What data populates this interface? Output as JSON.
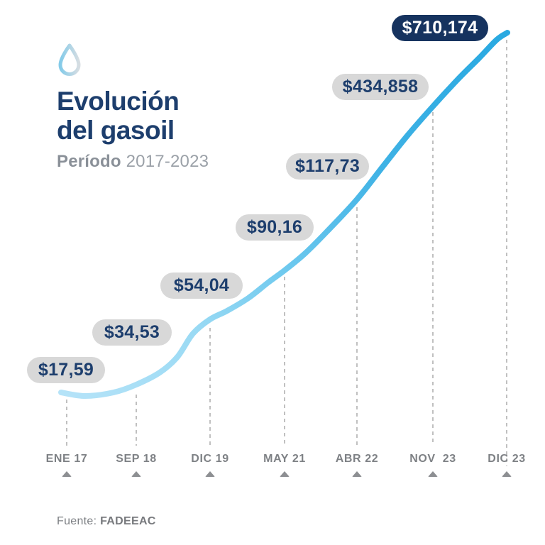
{
  "header": {
    "title_line1": "Evolución",
    "title_line2": "del gasoil",
    "period_label": "Período",
    "period_value": "2017-2023"
  },
  "chart_data": {
    "type": "line",
    "title": "Evolución del gasoil",
    "subtitle": "Período 2017-2023",
    "x": [
      "ENE 17",
      "SEP 18",
      "DIC 19",
      "MAY 21",
      "ABR 22",
      "NOV  23",
      "DIC 23"
    ],
    "values": [
      17.59,
      34.53,
      54.04,
      90.16,
      117.73,
      434.858,
      710.174
    ],
    "value_labels": [
      "$17,59",
      "$34,53",
      "$54,04",
      "$90,16",
      "$117,73",
      "$434,858",
      "$710,174"
    ],
    "highlight_index": 6,
    "currency_symbol": "$",
    "legend": "none",
    "grid": "vertical-dashed",
    "line_gradient_start": "#b5e3f8",
    "line_gradient_end": "#29a9e1",
    "pill_bg": "#d8d8d8",
    "pill_text_color": "#1d3e6d",
    "highlight_pill_bg": "#16335f",
    "highlight_pill_text_color": "#ffffff",
    "dashed_line_color": "#b0b0b0",
    "axis_text_color": "#7e8185"
  },
  "footer": {
    "source_label": "Fuente:",
    "source_value": "FADEEAC"
  }
}
